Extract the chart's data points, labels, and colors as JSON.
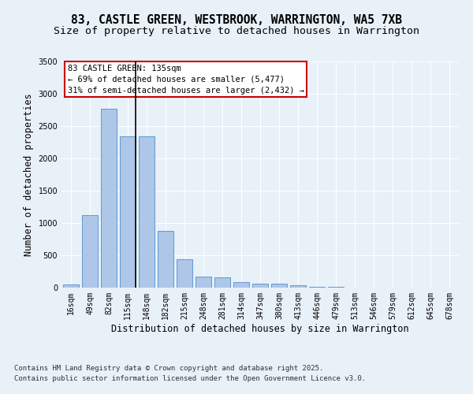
{
  "title_line1": "83, CASTLE GREEN, WESTBROOK, WARRINGTON, WA5 7XB",
  "title_line2": "Size of property relative to detached houses in Warrington",
  "xlabel": "Distribution of detached houses by size in Warrington",
  "ylabel": "Number of detached properties",
  "footer_line1": "Contains HM Land Registry data © Crown copyright and database right 2025.",
  "footer_line2": "Contains public sector information licensed under the Open Government Licence v3.0.",
  "categories": [
    "16sqm",
    "49sqm",
    "82sqm",
    "115sqm",
    "148sqm",
    "182sqm",
    "215sqm",
    "248sqm",
    "281sqm",
    "314sqm",
    "347sqm",
    "380sqm",
    "413sqm",
    "446sqm",
    "479sqm",
    "513sqm",
    "546sqm",
    "579sqm",
    "612sqm",
    "645sqm",
    "678sqm"
  ],
  "values": [
    50,
    1120,
    2760,
    2340,
    2340,
    880,
    440,
    170,
    160,
    80,
    55,
    55,
    40,
    15,
    10,
    5,
    5,
    2,
    1,
    1,
    1
  ],
  "bar_color": "#aec6e8",
  "bar_edge_color": "#5b9bd5",
  "highlight_bar_index": 3,
  "highlight_line_color": "#000000",
  "annotation_box_text_line1": "83 CASTLE GREEN: 135sqm",
  "annotation_box_text_line2": "← 69% of detached houses are smaller (5,477)",
  "annotation_box_text_line3": "31% of semi-detached houses are larger (2,432) →",
  "annotation_box_color": "#cc0000",
  "annotation_box_fill": "#ffffff",
  "ylim": [
    0,
    3500
  ],
  "yticks": [
    0,
    500,
    1000,
    1500,
    2000,
    2500,
    3000,
    3500
  ],
  "bg_color": "#e8f0f8",
  "grid_color": "#ffffff",
  "title_fontsize": 10.5,
  "subtitle_fontsize": 9.5,
  "axis_label_fontsize": 8.5,
  "tick_fontsize": 7,
  "annotation_fontsize": 7.5,
  "footer_fontsize": 6.5
}
